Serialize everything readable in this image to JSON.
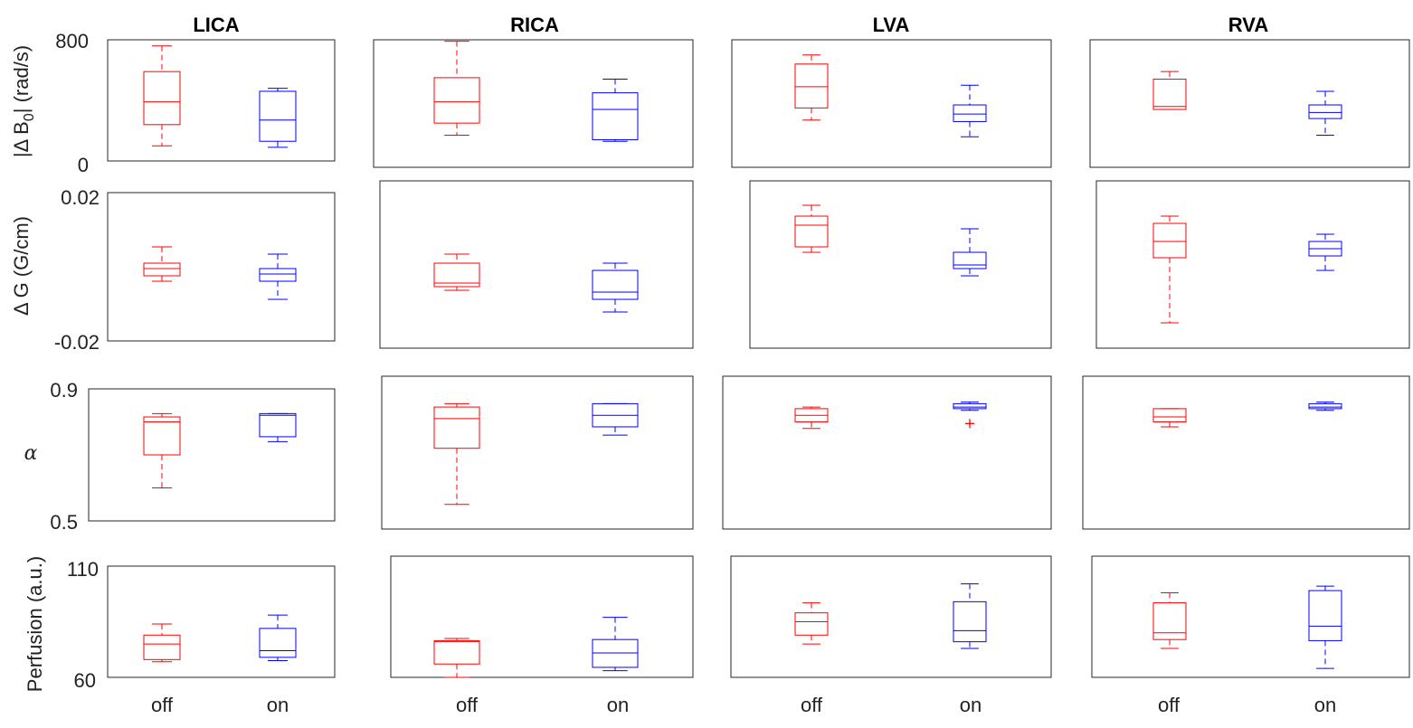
{
  "columns": [
    "LICA",
    "RICA",
    "LVA",
    "RVA"
  ],
  "categories": [
    "off",
    "on"
  ],
  "colors": {
    "off": "#ff0000",
    "on": "#0000ff"
  },
  "rows": [
    {
      "ylabel_main": "|Δ B",
      "ylabel_sub": "0",
      "ylabel_tail": "| (rad/s)",
      "ymin_label": "0",
      "ymax_label": "800"
    },
    {
      "ylabel": "Δ G (G/cm)",
      "ymin_label": "-0.02",
      "ymax_label": "0.02"
    },
    {
      "ylabel": "α",
      "ymin_label": "0.5",
      "ymax_label": "0.9"
    },
    {
      "ylabel": "Perfusion (a.u.)",
      "ymin_label": "60",
      "ymax_label": "110"
    }
  ],
  "chart_data": [
    {
      "type": "box",
      "title": "LICA",
      "row": 0,
      "ylim": [
        0,
        800
      ],
      "categories": [
        "off",
        "on"
      ],
      "boxes": [
        {
          "category": "off",
          "min": 100,
          "q1": 240,
          "median": 390,
          "q3": 590,
          "max": 760
        },
        {
          "category": "on",
          "min": 90,
          "q1": 130,
          "median": 270,
          "q3": 460,
          "max": 480
        }
      ]
    },
    {
      "type": "box",
      "title": "RICA",
      "row": 0,
      "ylim": [
        0,
        800
      ],
      "categories": [
        "off",
        "on"
      ],
      "boxes": [
        {
          "category": "off",
          "min": 170,
          "q1": 250,
          "median": 390,
          "q3": 550,
          "max": 790
        },
        {
          "category": "on",
          "min": 130,
          "q1": 140,
          "median": 340,
          "q3": 450,
          "max": 540
        }
      ]
    },
    {
      "type": "box",
      "title": "LVA",
      "row": 0,
      "ylim": [
        0,
        800
      ],
      "categories": [
        "off",
        "on"
      ],
      "boxes": [
        {
          "category": "off",
          "min": 270,
          "q1": 350,
          "median": 490,
          "q3": 640,
          "max": 700
        },
        {
          "category": "on",
          "min": 160,
          "q1": 260,
          "median": 310,
          "q3": 370,
          "max": 500
        }
      ]
    },
    {
      "type": "box",
      "title": "RVA",
      "row": 0,
      "ylim": [
        0,
        800
      ],
      "categories": [
        "off",
        "on"
      ],
      "boxes": [
        {
          "category": "off",
          "min": 340,
          "q1": 340,
          "median": 360,
          "q3": 540,
          "max": 590
        },
        {
          "category": "on",
          "min": 170,
          "q1": 280,
          "median": 320,
          "q3": 370,
          "max": 460
        }
      ]
    },
    {
      "type": "box",
      "title": "LICA",
      "row": 1,
      "ylim": [
        -0.02,
        0.02
      ],
      "categories": [
        "off",
        "on"
      ],
      "boxes": [
        {
          "category": "off",
          "min": -0.0035,
          "q1": -0.002,
          "median": 0.0,
          "q3": 0.0015,
          "max": 0.006
        },
        {
          "category": "on",
          "min": -0.0085,
          "q1": -0.0035,
          "median": -0.0015,
          "q3": 0.0,
          "max": 0.004
        }
      ]
    },
    {
      "type": "box",
      "title": "RICA",
      "row": 1,
      "ylim": [
        -0.02,
        0.02
      ],
      "categories": [
        "off",
        "on"
      ],
      "boxes": [
        {
          "category": "off",
          "min": -0.006,
          "q1": -0.005,
          "median": -0.004,
          "q3": 0.0015,
          "max": 0.004
        },
        {
          "category": "on",
          "min": -0.012,
          "q1": -0.0085,
          "median": -0.0065,
          "q3": -0.0005,
          "max": 0.0015
        }
      ]
    },
    {
      "type": "box",
      "title": "LVA",
      "row": 1,
      "ylim": [
        -0.02,
        0.02
      ],
      "categories": [
        "off",
        "on"
      ],
      "boxes": [
        {
          "category": "off",
          "min": 0.0045,
          "q1": 0.006,
          "median": 0.012,
          "q3": 0.0145,
          "max": 0.0175
        },
        {
          "category": "on",
          "min": -0.002,
          "q1": 0.0,
          "median": 0.001,
          "q3": 0.0045,
          "max": 0.011
        }
      ]
    },
    {
      "type": "box",
      "title": "RVA",
      "row": 1,
      "ylim": [
        -0.02,
        0.02
      ],
      "categories": [
        "off",
        "on"
      ],
      "boxes": [
        {
          "category": "off",
          "min": -0.015,
          "q1": 0.003,
          "median": 0.0075,
          "q3": 0.0125,
          "max": 0.0145
        },
        {
          "category": "on",
          "min": -0.0005,
          "q1": 0.0035,
          "median": 0.0055,
          "q3": 0.0075,
          "max": 0.0095
        }
      ]
    },
    {
      "type": "box",
      "title": "LICA",
      "row": 2,
      "ylim": [
        0.5,
        0.9
      ],
      "categories": [
        "off",
        "on"
      ],
      "boxes": [
        {
          "category": "off",
          "min": 0.6,
          "q1": 0.7,
          "median": 0.8,
          "q3": 0.815,
          "max": 0.825
        },
        {
          "category": "on",
          "min": 0.74,
          "q1": 0.755,
          "median": 0.82,
          "q3": 0.825,
          "max": 0.825
        }
      ]
    },
    {
      "type": "box",
      "title": "RICA",
      "row": 2,
      "ylim": [
        0.5,
        0.9
      ],
      "categories": [
        "off",
        "on"
      ],
      "boxes": [
        {
          "category": "off",
          "min": 0.55,
          "q1": 0.72,
          "median": 0.81,
          "q3": 0.845,
          "max": 0.855
        },
        {
          "category": "on",
          "min": 0.76,
          "q1": 0.785,
          "median": 0.82,
          "q3": 0.855,
          "max": 0.855
        }
      ]
    },
    {
      "type": "box",
      "title": "LVA",
      "row": 2,
      "ylim": [
        0.5,
        0.9
      ],
      "categories": [
        "off",
        "on"
      ],
      "boxes": [
        {
          "category": "off",
          "min": 0.78,
          "q1": 0.8,
          "median": 0.82,
          "q3": 0.84,
          "max": 0.845
        },
        {
          "category": "on",
          "min": 0.835,
          "q1": 0.84,
          "median": 0.845,
          "q3": 0.855,
          "max": 0.86,
          "outliers": [
            0.795
          ]
        }
      ]
    },
    {
      "type": "box",
      "title": "RVA",
      "row": 2,
      "ylim": [
        0.5,
        0.9
      ],
      "categories": [
        "off",
        "on"
      ],
      "boxes": [
        {
          "category": "off",
          "min": 0.785,
          "q1": 0.8,
          "median": 0.815,
          "q3": 0.84,
          "max": 0.84
        },
        {
          "category": "on",
          "min": 0.835,
          "q1": 0.84,
          "median": 0.845,
          "q3": 0.855,
          "max": 0.86
        }
      ]
    },
    {
      "type": "box",
      "title": "LICA",
      "row": 3,
      "ylim": [
        60,
        110
      ],
      "categories": [
        "off",
        "on"
      ],
      "boxes": [
        {
          "category": "off",
          "min": 67,
          "q1": 68,
          "median": 75,
          "q3": 79,
          "max": 84
        },
        {
          "category": "on",
          "min": 67.5,
          "q1": 69,
          "median": 72,
          "q3": 82,
          "max": 88
        }
      ]
    },
    {
      "type": "box",
      "title": "RICA",
      "row": 3,
      "ylim": [
        60,
        110
      ],
      "categories": [
        "off",
        "on"
      ],
      "boxes": [
        {
          "category": "off",
          "min": 60,
          "q1": 66,
          "median": 76,
          "q3": 76.5,
          "max": 77.5
        },
        {
          "category": "on",
          "min": 63,
          "q1": 64.5,
          "median": 71,
          "q3": 77,
          "max": 87
        }
      ]
    },
    {
      "type": "box",
      "title": "LVA",
      "row": 3,
      "ylim": [
        60,
        110
      ],
      "categories": [
        "off",
        "on"
      ],
      "boxes": [
        {
          "category": "off",
          "min": 75,
          "q1": 79,
          "median": 85,
          "q3": 89,
          "max": 93.5
        },
        {
          "category": "on",
          "min": 73,
          "q1": 76,
          "median": 81,
          "q3": 94,
          "max": 102
        }
      ]
    },
    {
      "type": "box",
      "title": "RVA",
      "row": 3,
      "ylim": [
        60,
        110
      ],
      "categories": [
        "off",
        "on"
      ],
      "boxes": [
        {
          "category": "off",
          "min": 73,
          "q1": 77,
          "median": 80,
          "q3": 93.5,
          "max": 98
        },
        {
          "category": "on",
          "min": 64,
          "q1": 76.5,
          "median": 83,
          "q3": 99,
          "max": 101
        }
      ]
    }
  ]
}
